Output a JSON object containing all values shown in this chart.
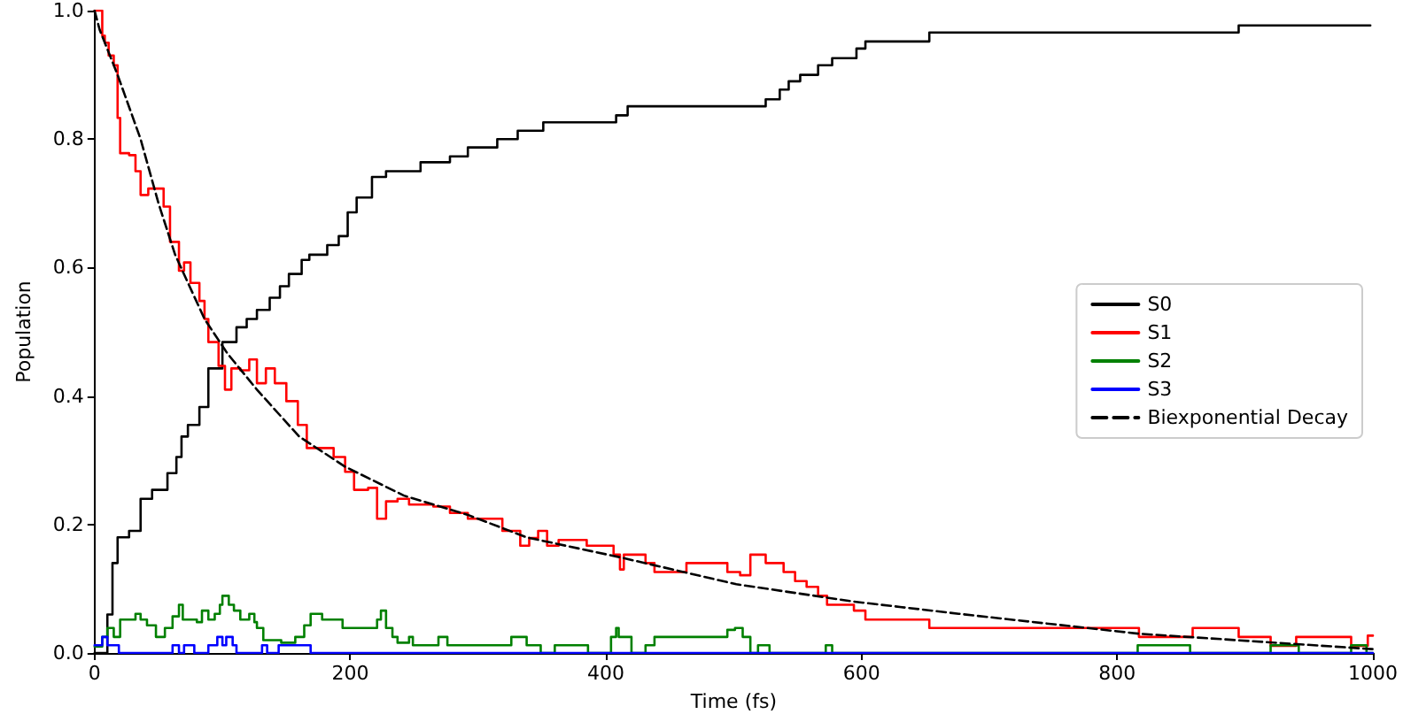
{
  "chart_data": {
    "type": "step",
    "xlabel": "Time (fs)",
    "ylabel": "Population",
    "xlim": [
      0,
      1000
    ],
    "ylim": [
      0,
      1
    ],
    "xticks": [
      0,
      200,
      400,
      600,
      800,
      1000
    ],
    "yticks": [
      {
        "value": 0,
        "label": "0.0"
      },
      {
        "value": 0.2,
        "label": "0.2"
      },
      {
        "value": 0.4,
        "label": "0.4"
      },
      {
        "value": 0.6,
        "label": "0.6"
      },
      {
        "value": 0.8,
        "label": "0.8"
      },
      {
        "value": 1,
        "label": "1.0"
      }
    ],
    "grid": false,
    "legend": "right",
    "marker": "none",
    "line_style": "solid",
    "series": [
      {
        "name": "S0",
        "color": "#000000",
        "x": [
          0,
          10,
          14,
          18,
          27,
          36,
          45,
          57,
          64,
          68,
          73,
          82,
          89,
          100,
          111,
          119,
          127,
          137,
          145,
          152,
          162,
          168,
          182,
          191,
          198,
          205,
          217,
          228,
          255,
          278,
          292,
          315,
          331,
          351,
          408,
          417,
          525,
          536,
          543,
          552,
          566,
          577,
          596,
          603,
          653,
          895,
          998
        ],
        "values": [
          0,
          0.06,
          0.14,
          0.18,
          0.19,
          0.24,
          0.254,
          0.28,
          0.305,
          0.337,
          0.355,
          0.383,
          0.443,
          0.484,
          0.507,
          0.52,
          0.534,
          0.553,
          0.571,
          0.59,
          0.612,
          0.62,
          0.635,
          0.649,
          0.686,
          0.709,
          0.741,
          0.75,
          0.764,
          0.773,
          0.787,
          0.8,
          0.813,
          0.826,
          0.837,
          0.851,
          0.862,
          0.877,
          0.89,
          0.9,
          0.915,
          0.926,
          0.941,
          0.952,
          0.966,
          0.977,
          0.977
        ]
      },
      {
        "name": "S1",
        "color": "#ff0000",
        "x": [
          0,
          6,
          8,
          11,
          15,
          18,
          20,
          27,
          32,
          36,
          42,
          54,
          59,
          66,
          70,
          75,
          82,
          86,
          89,
          97,
          102,
          107,
          114,
          121,
          127,
          134,
          141,
          150,
          159,
          166,
          187,
          196,
          203,
          214,
          221,
          228,
          237,
          246,
          265,
          278,
          292,
          319,
          333,
          340,
          347,
          354,
          363,
          385,
          406,
          411,
          414,
          431,
          438,
          463,
          495,
          505,
          513,
          525,
          539,
          548,
          557,
          566,
          573,
          594,
          603,
          653,
          817,
          859,
          895,
          920,
          940,
          983,
          996,
          1000
        ],
        "values": [
          1,
          0.961,
          0.95,
          0.93,
          0.915,
          0.833,
          0.778,
          0.775,
          0.75,
          0.713,
          0.723,
          0.695,
          0.64,
          0.595,
          0.608,
          0.576,
          0.548,
          0.52,
          0.484,
          0.447,
          0.41,
          0.443,
          0.44,
          0.457,
          0.42,
          0.443,
          0.42,
          0.392,
          0.355,
          0.319,
          0.305,
          0.282,
          0.254,
          0.257,
          0.209,
          0.236,
          0.24,
          0.231,
          0.228,
          0.218,
          0.209,
          0.19,
          0.167,
          0.179,
          0.19,
          0.167,
          0.176,
          0.167,
          0.153,
          0.13,
          0.153,
          0.14,
          0.126,
          0.14,
          0.126,
          0.121,
          0.153,
          0.14,
          0.126,
          0.112,
          0.103,
          0.089,
          0.075,
          0.066,
          0.052,
          0.039,
          0.025,
          0.039,
          0.025,
          0.011,
          0.025,
          0.011,
          0.027,
          0.027
        ]
      },
      {
        "name": "S2",
        "color": "#008000",
        "x": [
          0,
          6,
          10,
          15,
          20,
          32,
          36,
          41,
          48,
          55,
          61,
          66,
          69,
          80,
          84,
          89,
          94,
          98,
          100,
          105,
          109,
          114,
          121,
          125,
          127,
          132,
          146,
          157,
          164,
          169,
          178,
          194,
          221,
          224,
          228,
          233,
          237,
          246,
          249,
          269,
          276,
          326,
          338,
          349,
          360,
          386,
          404,
          408,
          410,
          420,
          431,
          438,
          495,
          501,
          507,
          513,
          519,
          528,
          572,
          577,
          816,
          857,
          920,
          942,
          983,
          995,
          1000
        ],
        "values": [
          0.01,
          0.025,
          0.039,
          0.025,
          0.052,
          0.061,
          0.052,
          0.043,
          0.025,
          0.039,
          0.057,
          0.075,
          0.052,
          0.048,
          0.066,
          0.052,
          0.061,
          0.075,
          0.089,
          0.075,
          0.066,
          0.052,
          0.061,
          0.048,
          0.039,
          0.02,
          0.016,
          0.025,
          0.043,
          0.061,
          0.052,
          0.039,
          0.052,
          0.066,
          0.039,
          0.025,
          0.016,
          0.025,
          0.012,
          0.025,
          0.012,
          0.025,
          0.012,
          0,
          0.012,
          0,
          0.025,
          0.039,
          0.025,
          0,
          0.012,
          0.025,
          0.036,
          0.039,
          0.025,
          0,
          0.012,
          0,
          0.012,
          0,
          0.012,
          0,
          0.012,
          0,
          0.012,
          0,
          0
        ]
      },
      {
        "name": "S3",
        "color": "#0000ff",
        "x": [
          0,
          6,
          10,
          19,
          61,
          66,
          70,
          78,
          89,
          96,
          100,
          103,
          108,
          111,
          131,
          135,
          144,
          169,
          1000
        ],
        "values": [
          0.012,
          0.025,
          0.012,
          0,
          0.012,
          0,
          0.012,
          0,
          0.012,
          0.025,
          0.012,
          0.025,
          0.012,
          0,
          0.012,
          0,
          0.012,
          0,
          0
        ]
      },
      {
        "name": "Biexponential Decay",
        "color": "#000000",
        "type": "line",
        "line_style": "dashed",
        "x": [
          0,
          4,
          18,
          36,
          50,
          63,
          86,
          104,
          127,
          160,
          196,
          242,
          292,
          338,
          411,
          502,
          594,
          676,
          817,
          1000
        ],
        "values": [
          1,
          0.97,
          0.9,
          0.8,
          0.7,
          0.62,
          0.52,
          0.466,
          0.41,
          0.337,
          0.29,
          0.245,
          0.215,
          0.18,
          0.149,
          0.107,
          0.08,
          0.061,
          0.03,
          0.006
        ]
      }
    ]
  }
}
